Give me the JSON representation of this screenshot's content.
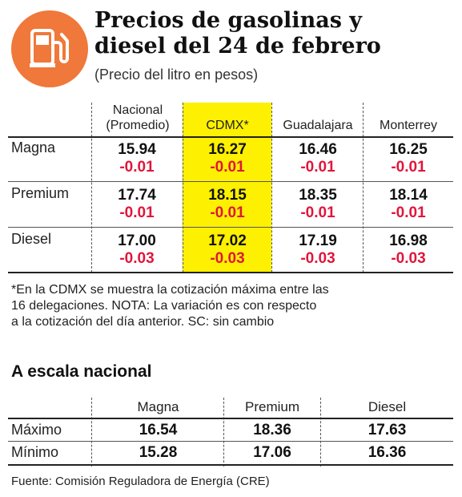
{
  "header": {
    "icon": "gas-pump-icon",
    "accent_color": "#f0783a",
    "title_line1": "Precios de gasolinas y",
    "title_line2": "diesel del 24 de febrero",
    "subtitle": "(Precio del litro en pesos)"
  },
  "prices": {
    "columns": [
      {
        "line1": "Nacional",
        "line2": "(Promedio)"
      },
      {
        "line1": "",
        "line2": "CDMX*"
      },
      {
        "line1": "",
        "line2": "Guadalajara"
      },
      {
        "line1": "",
        "line2": "Monterrey"
      }
    ],
    "highlight_color": "#fdf000",
    "change_color": "#e0163b",
    "rows": [
      {
        "label": "Magna",
        "values": [
          "15.94",
          "16.27",
          "16.46",
          "16.25"
        ],
        "changes": [
          "-0.01",
          "-0.01",
          "-0.01",
          "-0.01"
        ]
      },
      {
        "label": "Premium",
        "values": [
          "17.74",
          "18.15",
          "18.35",
          "18.14"
        ],
        "changes": [
          "-0.01",
          "-0.01",
          "-0.01",
          "-0.01"
        ]
      },
      {
        "label": "Diesel",
        "values": [
          "17.00",
          "17.02",
          "17.19",
          "16.98"
        ],
        "changes": [
          "-0.03",
          "-0.03",
          "-0.03",
          "-0.03"
        ]
      }
    ]
  },
  "footnote": {
    "line1": "*En la CDMX se muestra la cotización máxima entre las",
    "line2": "16 delegaciones. NOTA: La variación es con respecto",
    "line3": "a la cotización del día anterior. SC: sin cambio"
  },
  "national": {
    "title": "A escala nacional",
    "columns": [
      "Magna",
      "Premium",
      "Diesel"
    ],
    "rows": [
      {
        "label": "Máximo",
        "values": [
          "16.54",
          "18.36",
          "17.63"
        ]
      },
      {
        "label": "Mínimo",
        "values": [
          "15.28",
          "17.06",
          "16.36"
        ]
      }
    ]
  },
  "source": "Fuente: Comisión Reguladora de Energía (CRE)"
}
